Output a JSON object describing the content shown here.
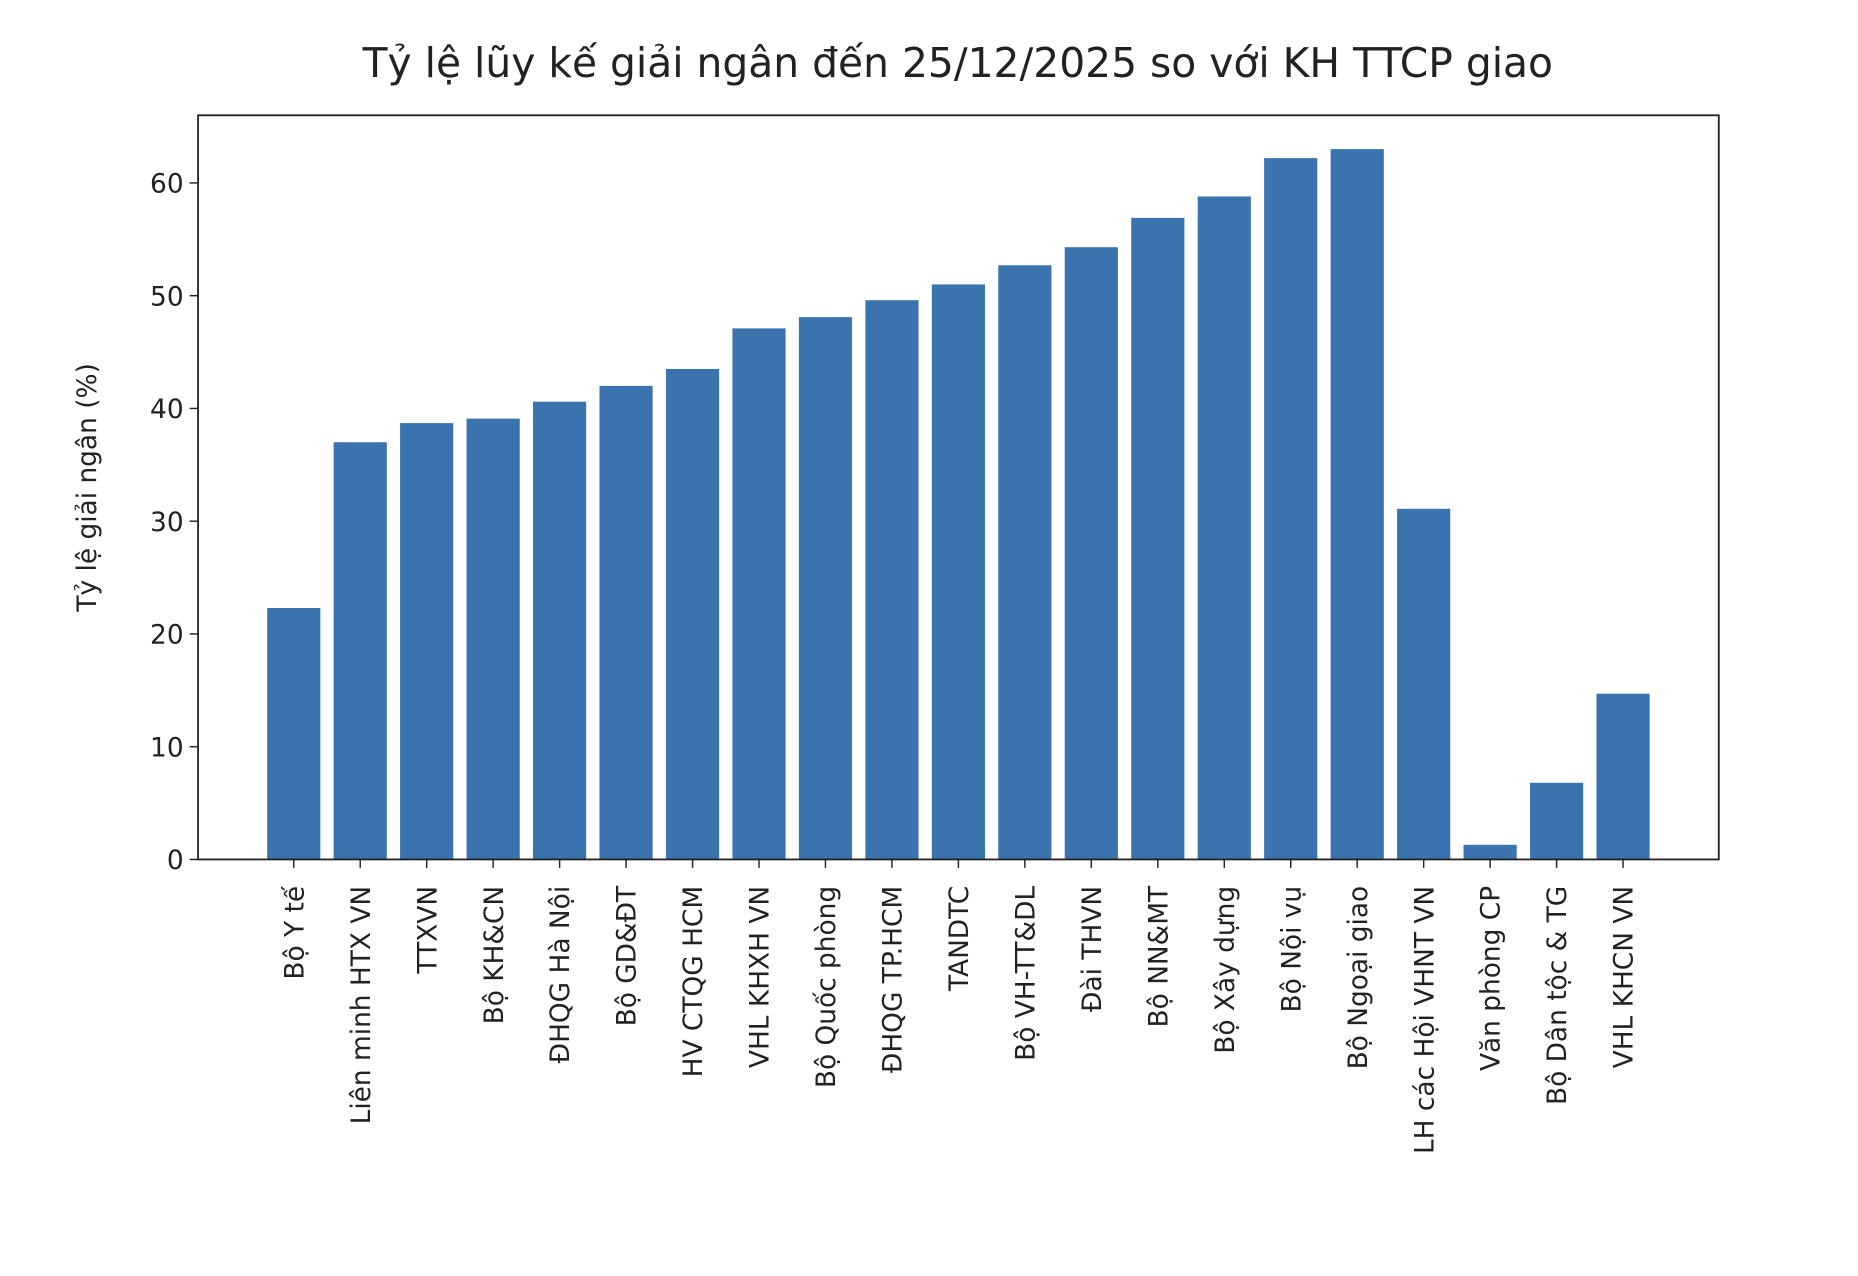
{
  "chart_data": {
    "type": "bar",
    "title": "Tỷ lệ lũy kế giải ngân đến 25/12/2025 so với KH TTCP giao",
    "y_label": "Tỷ lệ giải ngân (%)",
    "categories": [
      "Bộ Y tế",
      "Liên minh HTX VN",
      "TTXVN",
      "Bộ KH&CN",
      "ĐHQG Hà Nội",
      "Bộ GD&ĐT",
      "HV CTQG HCM",
      "VHL KHXH VN",
      "Bộ Quốc phòng",
      "ĐHQG TP.HCM",
      "TANDTC",
      "Bộ VH-TT&DL",
      "Đài THVN",
      "Bộ NN&MT",
      "Bộ Xây dựng",
      "Bộ Nội vụ",
      "Bộ Ngoại giao",
      "LH các Hội VHNT VN",
      "Văn phòng CP",
      "Bộ Dân tộc & TG",
      "VHL KHCN VN"
    ],
    "values": [
      22.3,
      37.0,
      38.7,
      39.1,
      40.6,
      42.0,
      43.5,
      47.1,
      48.1,
      49.6,
      51.0,
      52.7,
      54.3,
      56.9,
      58.8,
      62.2,
      63.0,
      31.1,
      1.3,
      6.8,
      14.7
    ],
    "color": "#3a73ad",
    "ylim": [
      0,
      66
    ],
    "yticks": [
      0,
      10,
      20,
      30,
      40,
      50,
      60
    ]
  }
}
